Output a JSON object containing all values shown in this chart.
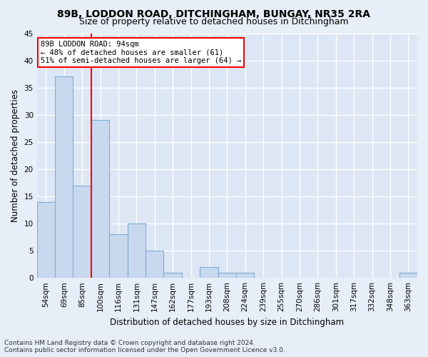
{
  "title": "89B, LODDON ROAD, DITCHINGHAM, BUNGAY, NR35 2RA",
  "subtitle": "Size of property relative to detached houses in Ditchingham",
  "xlabel": "Distribution of detached houses by size in Ditchingham",
  "ylabel": "Number of detached properties",
  "categories": [
    "54sqm",
    "69sqm",
    "85sqm",
    "100sqm",
    "116sqm",
    "131sqm",
    "147sqm",
    "162sqm",
    "177sqm",
    "193sqm",
    "208sqm",
    "224sqm",
    "239sqm",
    "255sqm",
    "270sqm",
    "286sqm",
    "301sqm",
    "317sqm",
    "332sqm",
    "348sqm",
    "363sqm"
  ],
  "values": [
    14,
    37,
    17,
    29,
    8,
    10,
    5,
    1,
    0,
    2,
    1,
    1,
    0,
    0,
    0,
    0,
    0,
    0,
    0,
    0,
    1
  ],
  "bar_color": "#c8d8ee",
  "bar_edge_color": "#7bafd4",
  "annotation_text_line1": "89B LODDON ROAD: 94sqm",
  "annotation_text_line2": "← 48% of detached houses are smaller (61)",
  "annotation_text_line3": "51% of semi-detached houses are larger (64) →",
  "ylim": [
    0,
    45
  ],
  "yticks": [
    0,
    5,
    10,
    15,
    20,
    25,
    30,
    35,
    40,
    45
  ],
  "footer_line1": "Contains HM Land Registry data © Crown copyright and database right 2024.",
  "footer_line2": "Contains public sector information licensed under the Open Government Licence v3.0.",
  "bg_color": "#e8eef8",
  "plot_bg_color": "#dde6f5",
  "grid_color": "#ffffff",
  "title_fontsize": 10,
  "subtitle_fontsize": 9,
  "axis_label_fontsize": 8.5,
  "tick_fontsize": 7.5,
  "annotation_fontsize": 7.5,
  "footer_fontsize": 6.5
}
